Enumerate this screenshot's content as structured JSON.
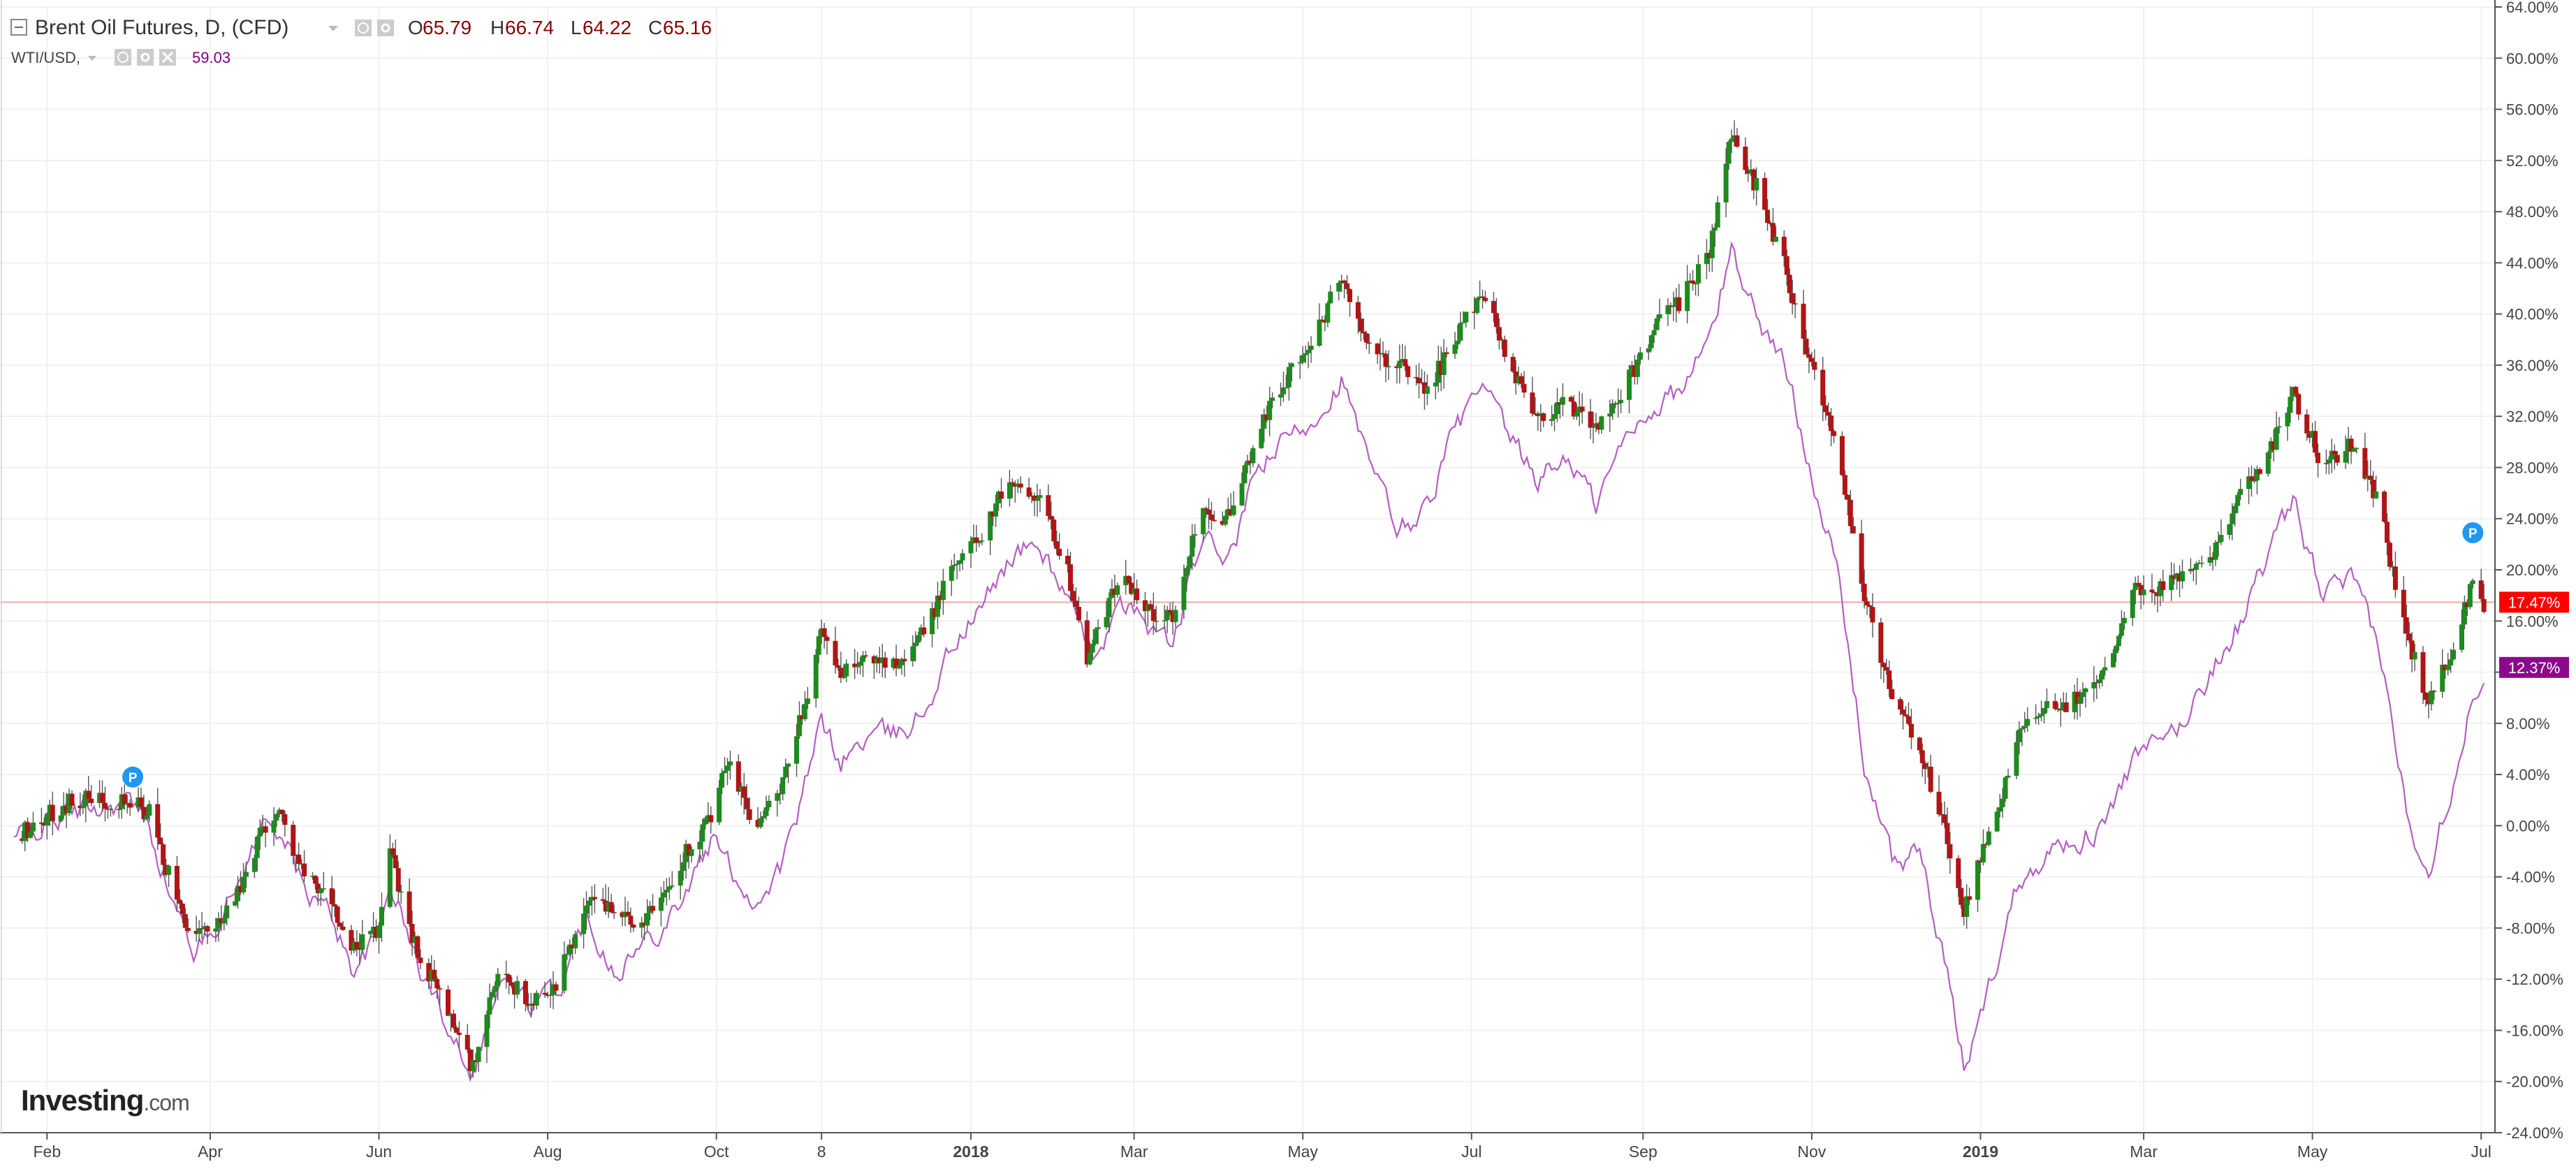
{
  "legend": {
    "main_title": "Brent Oil Futures, D, (CFD)",
    "ohlc": [
      {
        "label": "O",
        "value": "65.79"
      },
      {
        "label": "H",
        "value": "66.74"
      },
      {
        "label": "L",
        "value": "64.22"
      },
      {
        "label": "C",
        "value": "65.16"
      }
    ],
    "compare_title": "WTI/USD,",
    "compare_value": "59.03"
  },
  "watermark": {
    "brand": "Investing",
    "suffix": ".com"
  },
  "pin_label": "P",
  "colors": {
    "up_candle": "#1e8a1e",
    "down_candle": "#b01414",
    "compare_line": "#b35fc0",
    "price_line": "#f4a7a7",
    "main_badge": "#ff0000",
    "compare_badge": "#8b0a8b",
    "pin": "#2196f3",
    "grid": "#f0f0f0",
    "axis": "#555555",
    "ohlc_text": "#8b0000",
    "compare_text": "#800080"
  },
  "chart_data": {
    "type": "line",
    "title": "Brent Oil Futures, D, (CFD)",
    "y_unit": "%",
    "ylim": [
      -24,
      64
    ],
    "y_ticks": [
      "64.00%",
      "60.00%",
      "56.00%",
      "52.00%",
      "48.00%",
      "44.00%",
      "40.00%",
      "36.00%",
      "32.00%",
      "28.00%",
      "24.00%",
      "20.00%",
      "16.00%",
      "12.00%",
      "8.00%",
      "4.00%",
      "0.00%",
      "-4.00%",
      "-8.00%",
      "-12.00%",
      "-16.00%",
      "-20.00%",
      "-24.00%"
    ],
    "x_ticks": [
      {
        "label": "Feb",
        "date": "2017-02-01",
        "bold": false
      },
      {
        "label": "Apr",
        "date": "2017-04-01",
        "bold": false
      },
      {
        "label": "Jun",
        "date": "2017-06-01",
        "bold": false
      },
      {
        "label": "Aug",
        "date": "2017-08-01",
        "bold": false
      },
      {
        "label": "Oct",
        "date": "2017-10-01",
        "bold": false
      },
      {
        "label": "8",
        "date": "2017-11-08",
        "bold": false
      },
      {
        "label": "2018",
        "date": "2018-01-01",
        "bold": true
      },
      {
        "label": "Mar",
        "date": "2018-03-01",
        "bold": false
      },
      {
        "label": "May",
        "date": "2018-05-01",
        "bold": false
      },
      {
        "label": "Jul",
        "date": "2018-07-01",
        "bold": false
      },
      {
        "label": "Sep",
        "date": "2018-09-01",
        "bold": false
      },
      {
        "label": "Nov",
        "date": "2018-11-01",
        "bold": false
      },
      {
        "label": "2019",
        "date": "2019-01-01",
        "bold": true
      },
      {
        "label": "Mar",
        "date": "2019-03-01",
        "bold": false
      },
      {
        "label": "May",
        "date": "2019-05-01",
        "bold": false
      },
      {
        "label": "Jul",
        "date": "2019-07-01",
        "bold": false
      }
    ],
    "grid": true,
    "legend_position": "top-left",
    "current_values": [
      {
        "series": "Brent Oil Futures, D, (CFD)",
        "label": "17.47%",
        "value": 17.47
      },
      {
        "series": "WTI/USD,",
        "label": "12.37%",
        "value": 12.37
      }
    ],
    "pins": [
      {
        "date": "2017-03-04",
        "value": 3.8
      },
      {
        "date": "2019-06-28",
        "value": 22.9
      }
    ],
    "series": [
      {
        "name": "Brent Oil Futures, D, (CFD)",
        "style": "candlestick",
        "points": [
          {
            "date": "2017-01-20",
            "value": -1
          },
          {
            "date": "2017-02-10",
            "value": 2
          },
          {
            "date": "2017-03-01",
            "value": 2
          },
          {
            "date": "2017-03-10",
            "value": 1
          },
          {
            "date": "2017-03-20",
            "value": -6
          },
          {
            "date": "2017-03-27",
            "value": -9
          },
          {
            "date": "2017-04-10",
            "value": -6
          },
          {
            "date": "2017-04-20",
            "value": 0
          },
          {
            "date": "2017-04-26",
            "value": 1
          },
          {
            "date": "2017-05-05",
            "value": -4
          },
          {
            "date": "2017-05-15",
            "value": -6
          },
          {
            "date": "2017-05-22",
            "value": -10
          },
          {
            "date": "2017-06-01",
            "value": -8
          },
          {
            "date": "2017-06-05",
            "value": -2
          },
          {
            "date": "2017-06-15",
            "value": -10
          },
          {
            "date": "2017-06-25",
            "value": -14
          },
          {
            "date": "2017-07-05",
            "value": -19
          },
          {
            "date": "2017-07-15",
            "value": -11
          },
          {
            "date": "2017-07-25",
            "value": -14
          },
          {
            "date": "2017-08-05",
            "value": -12
          },
          {
            "date": "2017-08-15",
            "value": -6
          },
          {
            "date": "2017-08-25",
            "value": -6
          },
          {
            "date": "2017-09-01",
            "value": -8
          },
          {
            "date": "2017-09-10",
            "value": -6
          },
          {
            "date": "2017-09-20",
            "value": -2
          },
          {
            "date": "2017-09-30",
            "value": 1
          },
          {
            "date": "2017-10-05",
            "value": 5
          },
          {
            "date": "2017-10-15",
            "value": 0
          },
          {
            "date": "2017-10-25",
            "value": 3
          },
          {
            "date": "2017-11-01",
            "value": 9
          },
          {
            "date": "2017-11-08",
            "value": 15
          },
          {
            "date": "2017-11-15",
            "value": 12
          },
          {
            "date": "2017-11-25",
            "value": 13
          },
          {
            "date": "2017-12-05",
            "value": 13
          },
          {
            "date": "2017-12-15",
            "value": 15
          },
          {
            "date": "2017-12-25",
            "value": 20
          },
          {
            "date": "2018-01-05",
            "value": 23
          },
          {
            "date": "2018-01-15",
            "value": 27
          },
          {
            "date": "2018-01-25",
            "value": 26
          },
          {
            "date": "2018-02-05",
            "value": 20
          },
          {
            "date": "2018-02-12",
            "value": 13
          },
          {
            "date": "2018-02-25",
            "value": 20
          },
          {
            "date": "2018-03-05",
            "value": 17
          },
          {
            "date": "2018-03-15",
            "value": 16
          },
          {
            "date": "2018-03-25",
            "value": 25
          },
          {
            "date": "2018-04-05",
            "value": 24
          },
          {
            "date": "2018-04-15",
            "value": 31
          },
          {
            "date": "2018-04-25",
            "value": 35
          },
          {
            "date": "2018-05-05",
            "value": 38
          },
          {
            "date": "2018-05-15",
            "value": 43
          },
          {
            "date": "2018-05-25",
            "value": 37
          },
          {
            "date": "2018-06-05",
            "value": 36
          },
          {
            "date": "2018-06-15",
            "value": 34
          },
          {
            "date": "2018-06-25",
            "value": 38
          },
          {
            "date": "2018-07-05",
            "value": 42
          },
          {
            "date": "2018-07-15",
            "value": 36
          },
          {
            "date": "2018-07-25",
            "value": 32
          },
          {
            "date": "2018-08-05",
            "value": 33
          },
          {
            "date": "2018-08-15",
            "value": 31
          },
          {
            "date": "2018-08-25",
            "value": 34
          },
          {
            "date": "2018-09-05",
            "value": 39
          },
          {
            "date": "2018-09-15",
            "value": 41
          },
          {
            "date": "2018-09-25",
            "value": 45
          },
          {
            "date": "2018-10-03",
            "value": 54
          },
          {
            "date": "2018-10-12",
            "value": 50
          },
          {
            "date": "2018-10-22",
            "value": 44
          },
          {
            "date": "2018-11-01",
            "value": 36
          },
          {
            "date": "2018-11-10",
            "value": 30
          },
          {
            "date": "2018-11-20",
            "value": 18
          },
          {
            "date": "2018-11-30",
            "value": 10
          },
          {
            "date": "2018-12-10",
            "value": 6
          },
          {
            "date": "2018-12-20",
            "value": -1
          },
          {
            "date": "2018-12-26",
            "value": -7
          },
          {
            "date": "2019-01-05",
            "value": 0
          },
          {
            "date": "2019-01-15",
            "value": 7
          },
          {
            "date": "2019-01-25",
            "value": 9
          },
          {
            "date": "2019-02-05",
            "value": 10
          },
          {
            "date": "2019-02-15",
            "value": 12
          },
          {
            "date": "2019-02-25",
            "value": 19
          },
          {
            "date": "2019-03-05",
            "value": 18
          },
          {
            "date": "2019-03-15",
            "value": 20
          },
          {
            "date": "2019-03-25",
            "value": 21
          },
          {
            "date": "2019-04-05",
            "value": 26
          },
          {
            "date": "2019-04-15",
            "value": 29
          },
          {
            "date": "2019-04-24",
            "value": 34
          },
          {
            "date": "2019-05-05",
            "value": 28
          },
          {
            "date": "2019-05-15",
            "value": 30
          },
          {
            "date": "2019-05-25",
            "value": 25
          },
          {
            "date": "2019-06-05",
            "value": 14
          },
          {
            "date": "2019-06-12",
            "value": 10
          },
          {
            "date": "2019-06-20",
            "value": 13
          },
          {
            "date": "2019-06-28",
            "value": 19
          },
          {
            "date": "2019-07-02",
            "value": 17.47
          }
        ]
      },
      {
        "name": "WTI/USD,",
        "style": "line",
        "points": [
          {
            "date": "2017-01-20",
            "value": -1
          },
          {
            "date": "2017-02-10",
            "value": 1
          },
          {
            "date": "2017-03-01",
            "value": 2
          },
          {
            "date": "2017-03-10",
            "value": 0
          },
          {
            "date": "2017-03-20",
            "value": -7
          },
          {
            "date": "2017-03-27",
            "value": -10
          },
          {
            "date": "2017-04-10",
            "value": -5
          },
          {
            "date": "2017-04-20",
            "value": 0
          },
          {
            "date": "2017-04-26",
            "value": 0
          },
          {
            "date": "2017-05-05",
            "value": -5
          },
          {
            "date": "2017-05-15",
            "value": -7
          },
          {
            "date": "2017-05-22",
            "value": -11
          },
          {
            "date": "2017-06-01",
            "value": -9
          },
          {
            "date": "2017-06-05",
            "value": -4
          },
          {
            "date": "2017-06-15",
            "value": -11
          },
          {
            "date": "2017-06-25",
            "value": -15
          },
          {
            "date": "2017-07-05",
            "value": -19
          },
          {
            "date": "2017-07-15",
            "value": -12
          },
          {
            "date": "2017-07-25",
            "value": -14
          },
          {
            "date": "2017-08-05",
            "value": -13
          },
          {
            "date": "2017-08-15",
            "value": -7
          },
          {
            "date": "2017-08-25",
            "value": -11
          },
          {
            "date": "2017-09-01",
            "value": -10
          },
          {
            "date": "2017-09-10",
            "value": -8
          },
          {
            "date": "2017-09-20",
            "value": -5
          },
          {
            "date": "2017-09-30",
            "value": -1
          },
          {
            "date": "2017-10-05",
            "value": -3
          },
          {
            "date": "2017-10-15",
            "value": -6
          },
          {
            "date": "2017-10-25",
            "value": -3
          },
          {
            "date": "2017-11-01",
            "value": 2
          },
          {
            "date": "2017-11-08",
            "value": 8
          },
          {
            "date": "2017-11-15",
            "value": 5
          },
          {
            "date": "2017-11-25",
            "value": 7
          },
          {
            "date": "2017-12-05",
            "value": 7
          },
          {
            "date": "2017-12-15",
            "value": 9
          },
          {
            "date": "2017-12-25",
            "value": 14
          },
          {
            "date": "2018-01-05",
            "value": 17
          },
          {
            "date": "2018-01-15",
            "value": 21
          },
          {
            "date": "2018-01-25",
            "value": 22
          },
          {
            "date": "2018-02-05",
            "value": 18
          },
          {
            "date": "2018-02-12",
            "value": 13
          },
          {
            "date": "2018-02-25",
            "value": 17
          },
          {
            "date": "2018-03-05",
            "value": 16
          },
          {
            "date": "2018-03-15",
            "value": 14
          },
          {
            "date": "2018-03-25",
            "value": 22
          },
          {
            "date": "2018-04-05",
            "value": 21
          },
          {
            "date": "2018-04-15",
            "value": 28
          },
          {
            "date": "2018-04-25",
            "value": 30
          },
          {
            "date": "2018-05-05",
            "value": 32
          },
          {
            "date": "2018-05-15",
            "value": 35
          },
          {
            "date": "2018-05-25",
            "value": 28
          },
          {
            "date": "2018-06-05",
            "value": 23
          },
          {
            "date": "2018-06-15",
            "value": 25
          },
          {
            "date": "2018-06-25",
            "value": 31
          },
          {
            "date": "2018-07-05",
            "value": 34
          },
          {
            "date": "2018-07-15",
            "value": 30
          },
          {
            "date": "2018-07-25",
            "value": 27
          },
          {
            "date": "2018-08-05",
            "value": 29
          },
          {
            "date": "2018-08-15",
            "value": 25
          },
          {
            "date": "2018-08-25",
            "value": 30
          },
          {
            "date": "2018-09-05",
            "value": 33
          },
          {
            "date": "2018-09-15",
            "value": 34
          },
          {
            "date": "2018-09-25",
            "value": 38
          },
          {
            "date": "2018-10-03",
            "value": 45
          },
          {
            "date": "2018-10-12",
            "value": 40
          },
          {
            "date": "2018-10-22",
            "value": 36
          },
          {
            "date": "2018-11-01",
            "value": 28
          },
          {
            "date": "2018-11-10",
            "value": 20
          },
          {
            "date": "2018-11-20",
            "value": 5
          },
          {
            "date": "2018-11-30",
            "value": -3
          },
          {
            "date": "2018-12-10",
            "value": -2
          },
          {
            "date": "2018-12-20",
            "value": -12
          },
          {
            "date": "2018-12-26",
            "value": -19
          },
          {
            "date": "2019-01-05",
            "value": -12
          },
          {
            "date": "2019-01-15",
            "value": -4
          },
          {
            "date": "2019-01-25",
            "value": -2
          },
          {
            "date": "2019-02-05",
            "value": -1
          },
          {
            "date": "2019-02-15",
            "value": 0
          },
          {
            "date": "2019-02-25",
            "value": 5
          },
          {
            "date": "2019-03-05",
            "value": 6
          },
          {
            "date": "2019-03-15",
            "value": 8
          },
          {
            "date": "2019-03-25",
            "value": 12
          },
          {
            "date": "2019-04-05",
            "value": 16
          },
          {
            "date": "2019-04-15",
            "value": 21
          },
          {
            "date": "2019-04-24",
            "value": 25
          },
          {
            "date": "2019-05-05",
            "value": 18
          },
          {
            "date": "2019-05-15",
            "value": 19
          },
          {
            "date": "2019-05-25",
            "value": 14
          },
          {
            "date": "2019-06-05",
            "value": 0
          },
          {
            "date": "2019-06-12",
            "value": -3
          },
          {
            "date": "2019-06-20",
            "value": 3
          },
          {
            "date": "2019-06-28",
            "value": 10
          },
          {
            "date": "2019-07-02",
            "value": 12.37
          }
        ]
      }
    ]
  }
}
